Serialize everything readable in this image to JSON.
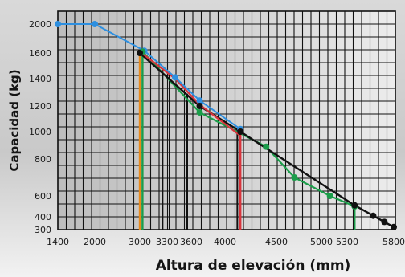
{
  "chart_data": {
    "type": "line",
    "title": "",
    "xlabel": "Altura de elevación (mm)",
    "ylabel": "Capacidad  (kg)",
    "x_ticks": [
      "1400",
      "2000",
      "3000",
      "3300",
      "3600",
      "4000",
      "4500",
      "5000",
      "5300",
      "5800"
    ],
    "y_ticks": [
      "2000",
      "1600",
      "1400",
      "1200",
      "1000",
      "800",
      "600",
      "400",
      "300"
    ],
    "xlim": [
      1400,
      5800
    ],
    "ylim": [
      300,
      2050
    ],
    "grid": true,
    "background_photo": true,
    "series": [
      {
        "color": "#2d8fe0",
        "marker_color": "#2d8fe0",
        "points": [
          {
            "x": 1400,
            "y": 2000
          },
          {
            "x": 2000,
            "y": 2000
          },
          {
            "x": 3050,
            "y": 1630
          },
          {
            "x": 3400,
            "y": 1410
          },
          {
            "x": 3700,
            "y": 1240
          },
          {
            "x": 4150,
            "y": 1020
          }
        ],
        "drop_line_at_x": 4150,
        "drop_line_color": "#d8343c"
      },
      {
        "color": "#d8343c",
        "points": [
          {
            "x": 3000,
            "y": 1620
          },
          {
            "x": 3400,
            "y": 1400
          },
          {
            "x": 3700,
            "y": 1210
          },
          {
            "x": 4150,
            "y": 970
          }
        ]
      },
      {
        "color": "#1b9d4a",
        "marker_color": "#1b9d4a",
        "points": [
          {
            "x": 3030,
            "y": 1620
          },
          {
            "x": 3700,
            "y": 1150
          },
          {
            "x": 4400,
            "y": 890
          },
          {
            "x": 4700,
            "y": 700
          },
          {
            "x": 5100,
            "y": 600
          },
          {
            "x": 5380,
            "y": 500
          }
        ],
        "drop_lines_at_x": [
          3030,
          5380
        ],
        "drop_line_color": "#1b9d4a"
      },
      {
        "color": "#111111",
        "marker_color": "#111111",
        "points": [
          {
            "x": 3000,
            "y": 1600
          },
          {
            "x": 3700,
            "y": 1200
          },
          {
            "x": 4150,
            "y": 1000
          },
          {
            "x": 5380,
            "y": 510
          },
          {
            "x": 5580,
            "y": 410
          },
          {
            "x": 5700,
            "y": 360
          },
          {
            "x": 5800,
            "y": 320
          }
        ],
        "drop_lines_at_x": [
          3250,
          3330,
          3550,
          4120
        ],
        "drop_line_color": "#111111"
      }
    ],
    "orange_drop_line_at_x": 3000,
    "colors": {
      "blue": "#2d8fe0",
      "red": "#d8343c",
      "green": "#1b9d4a",
      "black": "#111111",
      "orange": "#e8891c"
    }
  }
}
